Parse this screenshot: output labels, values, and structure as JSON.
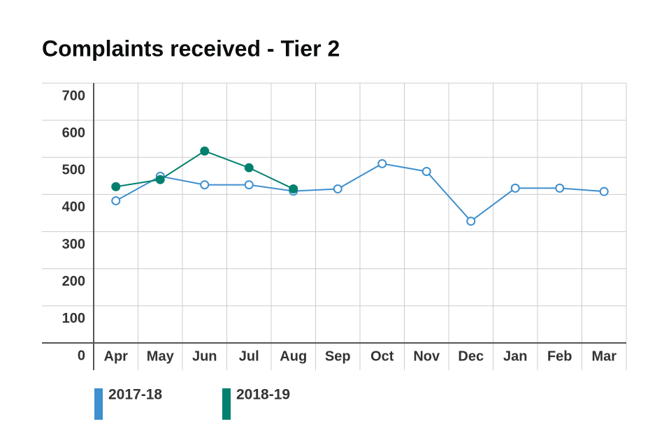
{
  "chart_data": {
    "type": "line",
    "title": "Complaints received - Tier 2",
    "categories": [
      "Apr",
      "May",
      "Jun",
      "Jul",
      "Aug",
      "Sep",
      "Oct",
      "Nov",
      "Dec",
      "Jan",
      "Feb",
      "Mar"
    ],
    "series": [
      {
        "name": "2017-18",
        "color": "#3d8fcf",
        "filled": false,
        "values": [
          383,
          449,
          426,
          426,
          409,
          415,
          483,
          462,
          328,
          417,
          417,
          408
        ]
      },
      {
        "name": "2018-19",
        "color": "#00806e",
        "filled": true,
        "values": [
          421,
          440,
          517,
          472,
          415,
          null,
          null,
          null,
          null,
          null,
          null,
          null
        ]
      }
    ],
    "ylim": [
      0,
      700
    ],
    "yticks": [
      0,
      100,
      200,
      300,
      400,
      500,
      600,
      700
    ],
    "grid": true
  }
}
